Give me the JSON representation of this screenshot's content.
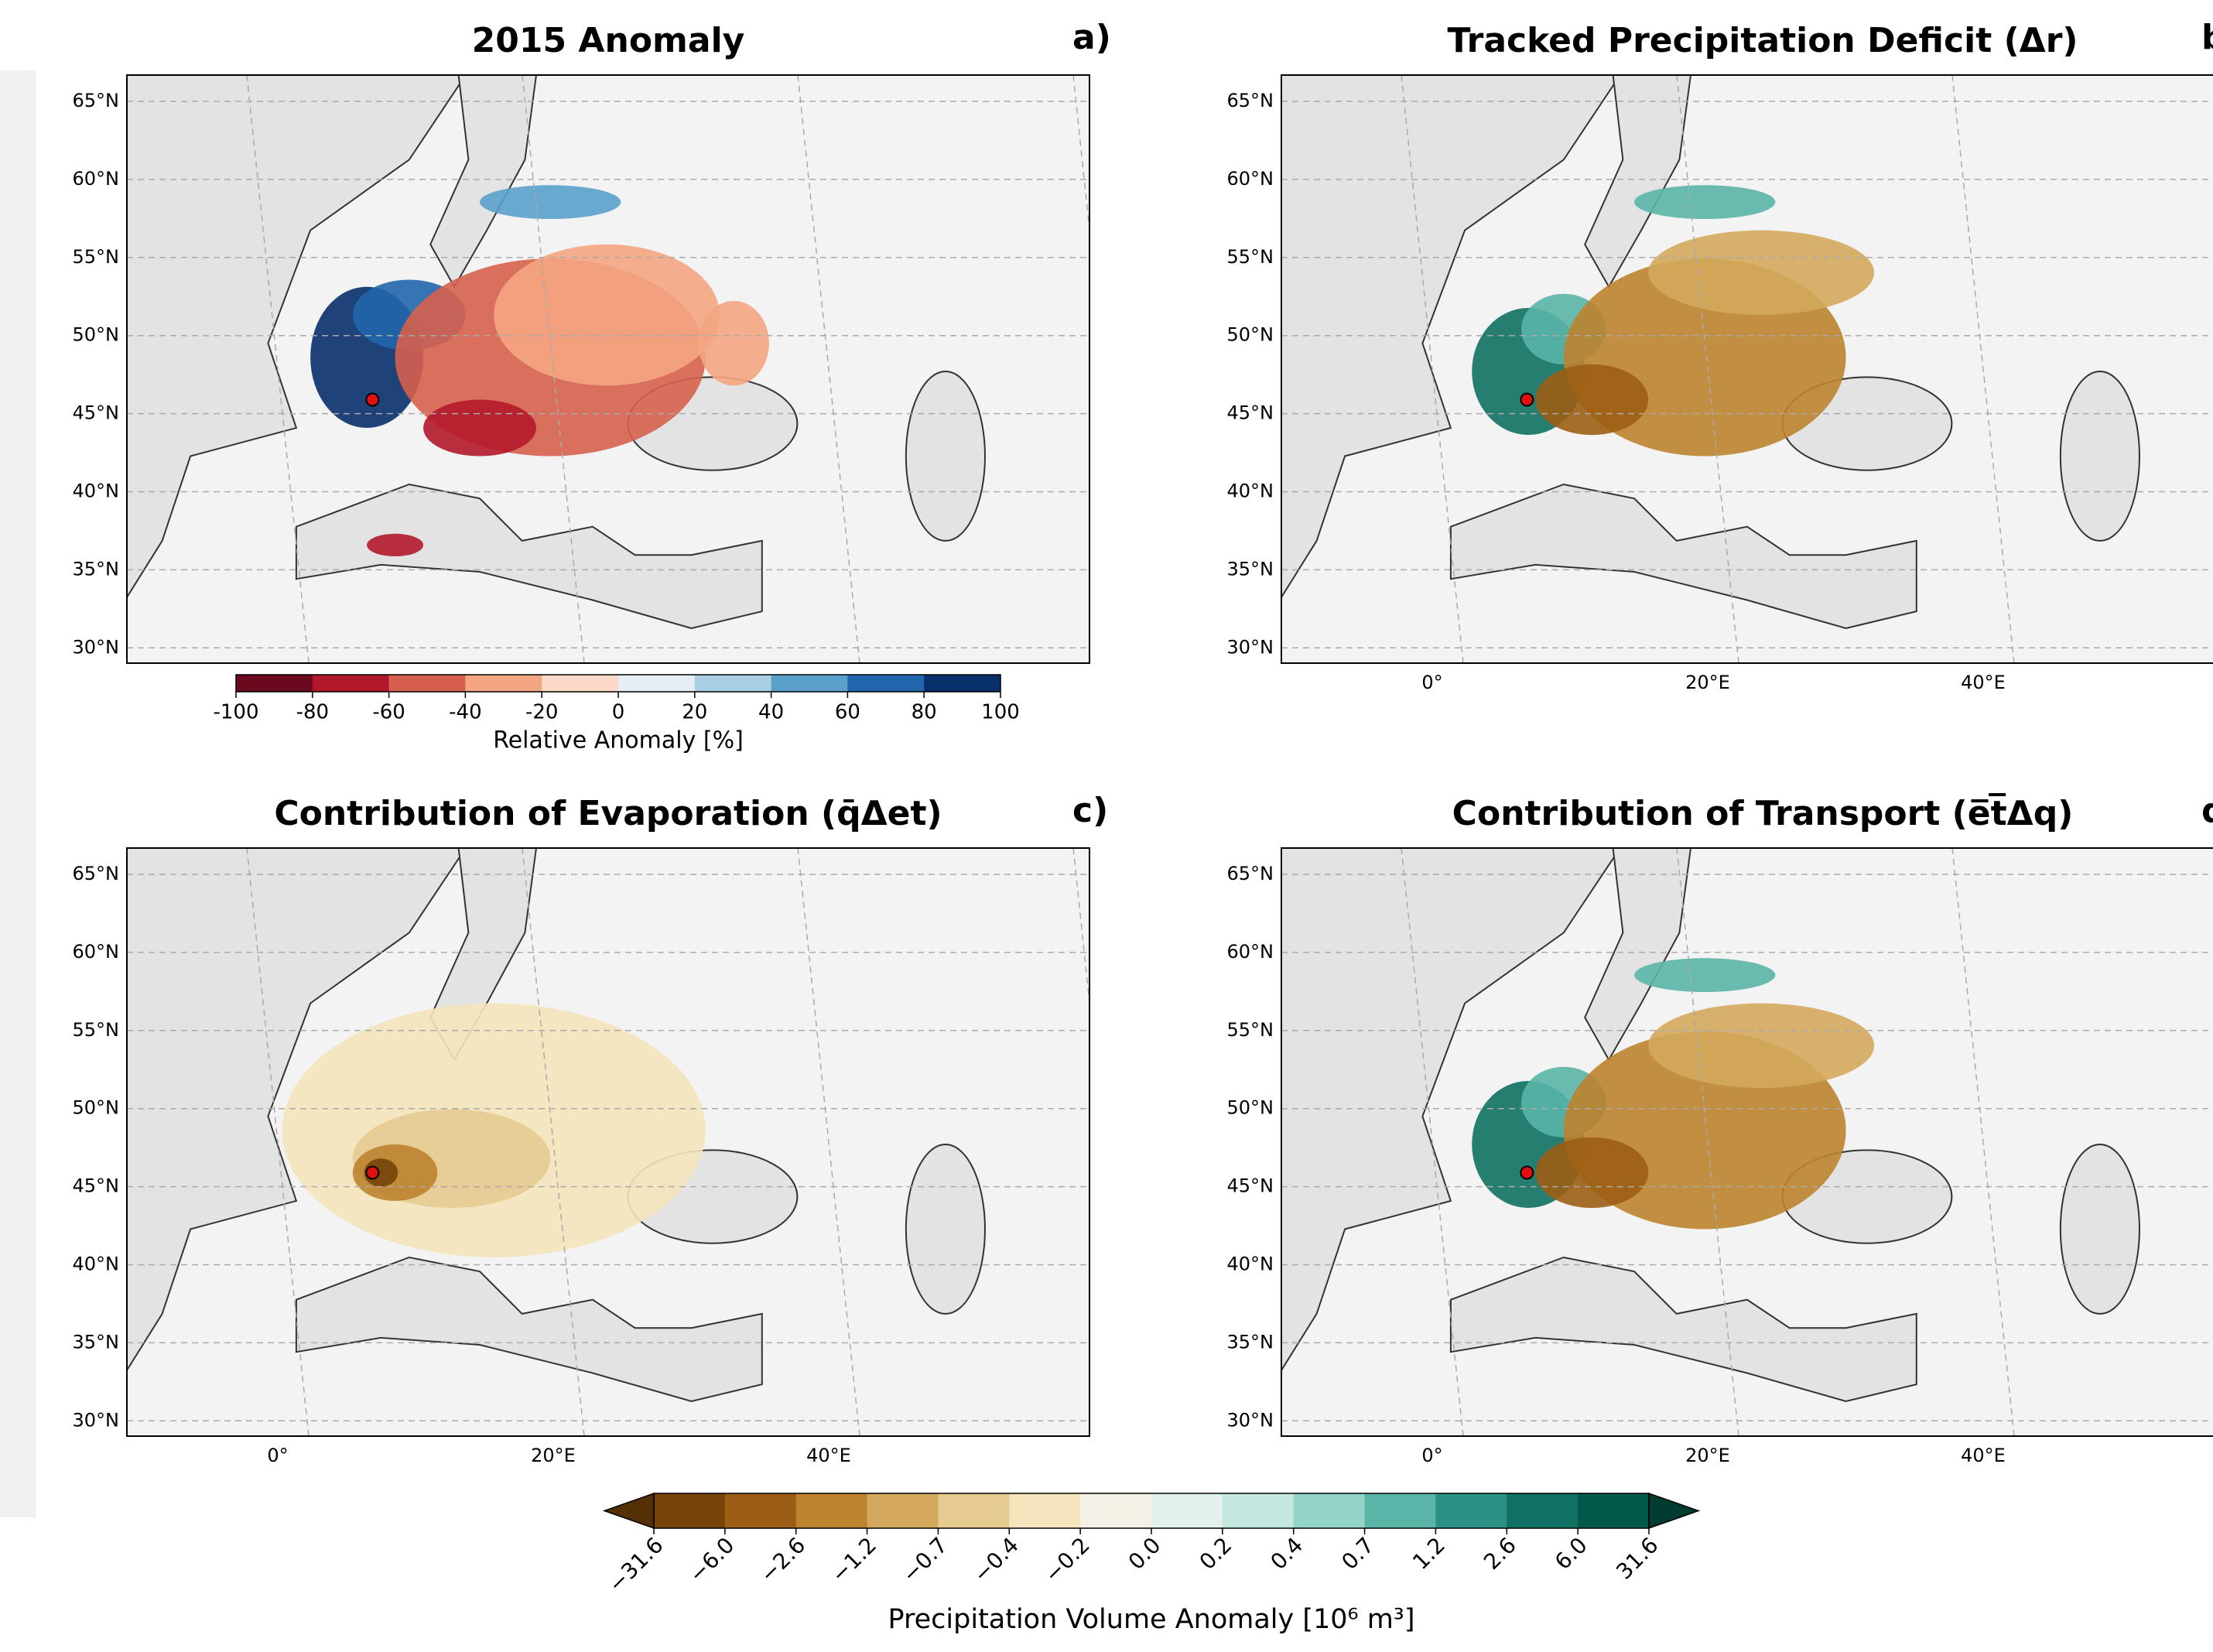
{
  "panels": [
    {
      "title": "2015 Anomaly",
      "label": "a)",
      "lat_ticks": [
        "65°N",
        "60°N",
        "55°N",
        "50°N",
        "45°N",
        "40°N",
        "35°N",
        "30°N"
      ],
      "lon_ticks": []
    },
    {
      "title": "Tracked Precipitation Deficit (Δr)",
      "label": "b",
      "lat_ticks": [
        "65°N",
        "60°N",
        "55°N",
        "50°N",
        "45°N",
        "40°N",
        "35°N",
        "30°N"
      ],
      "lon_ticks": [
        "0°",
        "20°E",
        "40°E"
      ]
    },
    {
      "title": "Contribution of Evaporation (q̄Δet)",
      "label": "c)",
      "lat_ticks": [
        "65°N",
        "60°N",
        "55°N",
        "50°N",
        "45°N",
        "40°N",
        "35°N",
        "30°N"
      ],
      "lon_ticks": [
        "0°",
        "20°E",
        "40°E"
      ]
    },
    {
      "title": "Contribution of Transport (e̅t̅Δq)",
      "label": "d",
      "lat_ticks": [
        "65°N",
        "60°N",
        "55°N",
        "50°N",
        "45°N",
        "40°N",
        "35°N",
        "30°N"
      ],
      "lon_ticks": [
        "0°",
        "20°E",
        "40°E"
      ]
    }
  ],
  "colorbars": [
    {
      "label": "Relative Anomaly [%]",
      "ticks": [
        "-100",
        "-80",
        "-60",
        "-40",
        "-20",
        "0",
        "20",
        "40",
        "60",
        "80",
        "100"
      ],
      "colors": [
        "#6b0a1e",
        "#b2182b",
        "#d6604d",
        "#f4a582",
        "#fbd9c6",
        "#e4eef4",
        "#a9cfe4",
        "#5aa0cb",
        "#2166ac",
        "#08306b"
      ]
    },
    {
      "label": "Precipitation Volume Anomaly [10⁶ m³]",
      "ticks": [
        "−31.6",
        "−6.0",
        "−2.6",
        "−1.2",
        "−0.7",
        "−0.4",
        "−0.2",
        "0.0",
        "0.2",
        "0.4",
        "0.7",
        "1.2",
        "2.6",
        "6.0",
        "31.6"
      ],
      "colors": [
        "#764409",
        "#9c5e14",
        "#bd832e",
        "#d4a85c",
        "#e6cb91",
        "#f5e4bd",
        "#f4f0e6",
        "#e2f1ee",
        "#c4e8e0",
        "#93d4c8",
        "#5ab5a8",
        "#2b9184",
        "#0f7163",
        "#01594a"
      ],
      "extend_colors": [
        "#543005",
        "#003c30"
      ]
    }
  ]
}
